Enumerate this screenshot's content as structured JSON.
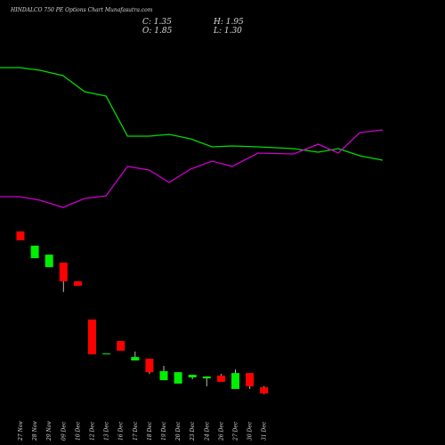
{
  "chart_data": [
    {
      "type": "candlestick",
      "title": "HINDALCO 750 PE Options Chart Munafasutra.com",
      "header": [
        "C: 1.35",
        "H: 1.95",
        "O: 1.85",
        "L: 1.30"
      ],
      "categories": [
        "27 Nov",
        "28 Nov",
        "29 Nov",
        "09 Dec",
        "10 Dec",
        "12 Dec",
        "13 Dec",
        "16 Dec",
        "17 Dec",
        "18 Dec",
        "19 Dec",
        "20 Dec",
        "23 Dec",
        "24 Dec",
        "26 Dec",
        "27 Dec",
        "30 Dec",
        "31 Dec"
      ],
      "open": [
        14.35,
        12.21,
        11.49,
        11.85,
        10.35,
        7.28,
        4.49,
        5.56,
        4.0,
        4.14,
        2.42,
        2.14,
        2.64,
        2.56,
        2.78,
        1.71,
        2.99,
        1.85
      ],
      "high": [
        14.35,
        13.21,
        12.49,
        11.85,
        10.35,
        7.28,
        4.56,
        5.56,
        4.71,
        4.14,
        3.56,
        3.06,
        2.85,
        2.71,
        2.92,
        3.28,
        2.99,
        1.95
      ],
      "low": [
        13.64,
        12.21,
        11.49,
        9.49,
        9.99,
        4.49,
        4.49,
        4.78,
        4.0,
        2.92,
        2.42,
        2.14,
        2.49,
        1.92,
        2.28,
        1.71,
        1.71,
        1.3
      ],
      "close": [
        13.64,
        13.21,
        12.49,
        10.35,
        9.99,
        4.49,
        4.56,
        4.78,
        4.28,
        3.06,
        3.14,
        3.06,
        2.85,
        2.71,
        2.28,
        2.99,
        1.92,
        1.35
      ],
      "up_color": "#00ee00",
      "down_color": "#ff0000",
      "ylim": [
        0,
        32.93
      ]
    },
    {
      "type": "line",
      "xlim": [
        -1.4,
        25.3
      ],
      "ylim": [
        0,
        300
      ],
      "x": [
        -1.4,
        0,
        1.4,
        3.0,
        4.5,
        6.0,
        7.5,
        9.0,
        10.4,
        11.9,
        13.4,
        14.8,
        16.6,
        19.1,
        20.8,
        22.2,
        23.7,
        25.3
      ],
      "series": [
        {
          "color": "#00dd00",
          "values": [
            224,
            224,
            221,
            215,
            197,
            192,
            147,
            147,
            149,
            144,
            135,
            136,
            135,
            133,
            129,
            133,
            125,
            120
          ]
        },
        {
          "color": "#cc00cc",
          "values": [
            79,
            79,
            75,
            67,
            77,
            80,
            113,
            109,
            95,
            110,
            119,
            113,
            128,
            127,
            138,
            128,
            151,
            154
          ]
        }
      ]
    }
  ]
}
